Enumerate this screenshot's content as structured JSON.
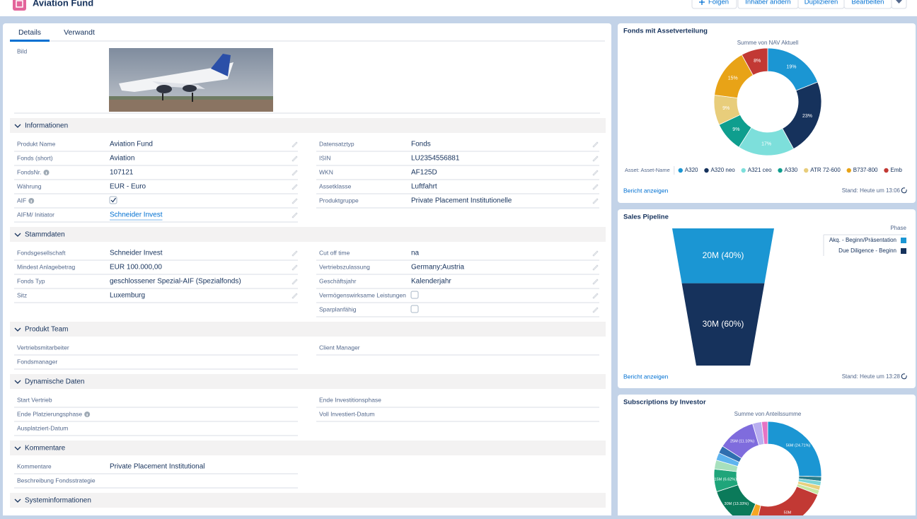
{
  "header": {
    "title": "Aviation Fund",
    "actions": [
      "Folgen",
      "Inhaber ändern",
      "Duplizieren",
      "Bearbeiten"
    ]
  },
  "tabs": [
    "Details",
    "Verwandt"
  ],
  "image_label": "Bild",
  "sections": [
    {
      "title": "Informationen",
      "editable": true,
      "left": [
        {
          "label": "Produkt Name",
          "value": "Aviation Fund"
        },
        {
          "label": "Fonds (short)",
          "value": "Aviation"
        },
        {
          "label": "FondsNr.",
          "value": "107121",
          "info": true
        },
        {
          "label": "Währung",
          "value": "EUR - Euro"
        },
        {
          "label": "AIF",
          "info": true,
          "checked": true
        },
        {
          "label": "AIFM/ Initiator",
          "value": "Schneider Invest",
          "link": true
        }
      ],
      "right": [
        {
          "label": "Datensatztyp",
          "value": "Fonds"
        },
        {
          "label": "ISIN",
          "value": "LU2354556881"
        },
        {
          "label": "WKN",
          "value": "AF125D"
        },
        {
          "label": "Assetklasse",
          "value": "Luftfahrt"
        },
        {
          "label": "Produktgruppe",
          "value": "Private Placement Institutionelle"
        }
      ]
    },
    {
      "title": "Stammdaten",
      "editable": true,
      "left": [
        {
          "label": "Fondsgesellschaft",
          "value": "Schneider Invest"
        },
        {
          "label": "Mindest Anlagebetrag",
          "value": "EUR 100.000,00"
        },
        {
          "label": "Fonds Typ",
          "value": "geschlossener Spezial-AIF (Spezialfonds)"
        },
        {
          "label": "Sitz",
          "value": "Luxemburg"
        }
      ],
      "right": [
        {
          "label": "Cut off time",
          "value": "na"
        },
        {
          "label": "Vertriebszulassung",
          "value": "Germany;Austria"
        },
        {
          "label": "Geschäftsjahr",
          "value": "Kalenderjahr"
        },
        {
          "label": "Vermögenswirksame Leistungen",
          "checked": false
        },
        {
          "label": "Sparplanfähig",
          "checked": false
        }
      ]
    },
    {
      "title": "Produkt Team",
      "editable": false,
      "left": [
        {
          "label": "Vertriebsmitarbeiter"
        },
        {
          "label": "Fondsmanager"
        }
      ],
      "right": [
        {
          "label": "Client Manager"
        }
      ]
    },
    {
      "title": "Dynamische Daten",
      "editable": false,
      "left": [
        {
          "label": "Start Vertrieb"
        },
        {
          "label": "Ende Platzierungsphase",
          "info": true
        },
        {
          "label": "Ausplatziert-Datum"
        }
      ],
      "right": [
        {
          "label": "Ende Investitionsphase"
        },
        {
          "label": "Voll Investiert-Datum"
        }
      ]
    },
    {
      "title": "Kommentare",
      "editable": false,
      "left": [
        {
          "label": "Kommentare",
          "value": "Private Placement Institutional"
        },
        {
          "label": "Beschreibung Fondsstrategie"
        }
      ],
      "right": []
    },
    {
      "title": "Systeminformationen",
      "editable": false,
      "left": [],
      "right": []
    }
  ],
  "cards": [
    {
      "link": "Bericht anzeigen",
      "timestamp": "Stand: Heute um 13:06"
    },
    {
      "link": "Bericht anzeigen",
      "timestamp": "Stand: Heute um 13:28"
    }
  ],
  "chart_data": [
    {
      "type": "donut",
      "title": "Fonds mit Assetverteilung",
      "subtitle": "Summe von NAV Aktuell",
      "legend_title": "Asset: Asset-Name",
      "categories": [
        "A320",
        "A320 neo",
        "A321 ceo",
        "A330",
        "ATR 72-600",
        "B737-800",
        "Emb"
      ],
      "values": [
        19,
        23,
        17,
        9,
        9,
        15,
        8
      ],
      "value_labels": [
        "19%",
        "23%",
        "17%",
        "9%",
        "9%",
        "15%",
        "8%"
      ],
      "colors": [
        "#1b96d3",
        "#16325c",
        "#7ddfdb",
        "#0f9e8e",
        "#e8cd7b",
        "#e8a317",
        "#c23934"
      ]
    },
    {
      "type": "funnel",
      "title": "Sales Pipeline",
      "legend_title": "Phase",
      "categories": [
        "Akq. - Beginn/Präsentation",
        "Due Diligence - Beginn"
      ],
      "values": [
        20,
        30
      ],
      "value_labels": [
        "20M (40%)",
        "30M (60%)"
      ],
      "colors": [
        "#1b96d3",
        "#16325c"
      ]
    },
    {
      "type": "donut",
      "title": "Subscriptions by Investor",
      "subtitle": "Summe von Anteilssumme",
      "values": [
        56,
        3,
        3,
        3,
        3,
        50,
        6,
        30,
        15,
        6,
        5,
        5,
        25,
        6,
        4
      ],
      "value_labels": [
        "56M (24.71%)",
        null,
        null,
        null,
        null,
        "50M",
        null,
        "30M (13.33%)",
        "15M (6.62%)",
        null,
        null,
        null,
        "25M (11.10%)",
        null,
        null
      ],
      "colors": [
        "#1b96d3",
        "#2a7d8c",
        "#7dd5d6",
        "#e8d07d",
        "#c7e8a4",
        "#c23934",
        "#f5a623",
        "#0b7a5a",
        "#1fa57a",
        "#a7e0bd",
        "#5eb4ef",
        "#2f6fb0",
        "#7f6cdd",
        "#b9aef0",
        "#e673c4"
      ]
    }
  ]
}
